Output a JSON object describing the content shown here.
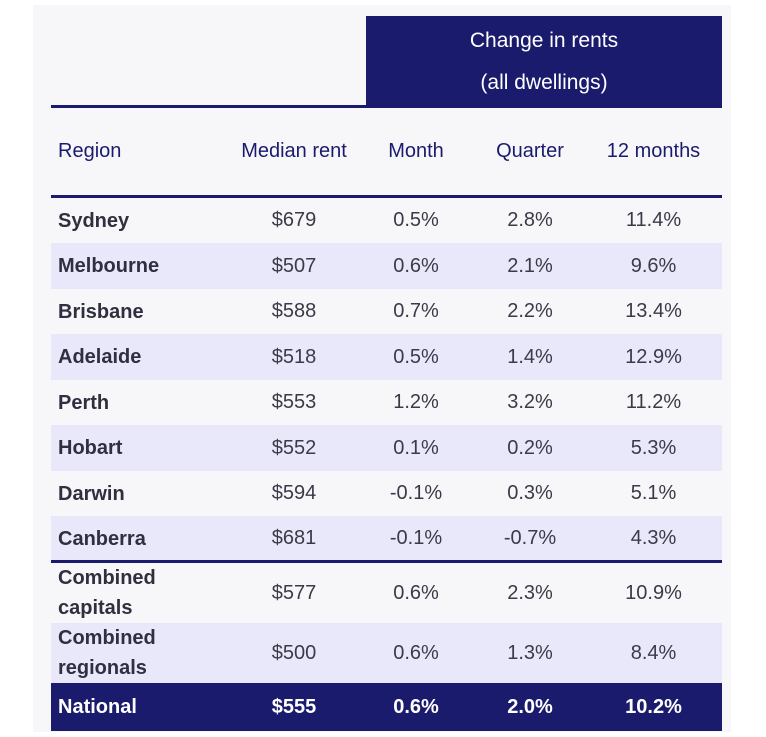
{
  "header": {
    "group_line1": "Change in rents",
    "group_line2": "(all dwellings)",
    "columns": [
      "Region",
      "Median rent",
      "Month",
      "Quarter",
      "12 months"
    ]
  },
  "rows": [
    {
      "region": "Sydney",
      "median": "$679",
      "month": "0.5%",
      "quarter": "2.8%",
      "year": "11.4%"
    },
    {
      "region": "Melbourne",
      "median": "$507",
      "month": "0.6%",
      "quarter": "2.1%",
      "year": "9.6%"
    },
    {
      "region": "Brisbane",
      "median": "$588",
      "month": "0.7%",
      "quarter": "2.2%",
      "year": "13.4%"
    },
    {
      "region": "Adelaide",
      "median": "$518",
      "month": "0.5%",
      "quarter": "1.4%",
      "year": "12.9%"
    },
    {
      "region": "Perth",
      "median": "$553",
      "month": "1.2%",
      "quarter": "3.2%",
      "year": "11.2%"
    },
    {
      "region": "Hobart",
      "median": "$552",
      "month": "0.1%",
      "quarter": "0.2%",
      "year": "5.3%"
    },
    {
      "region": "Darwin",
      "median": "$594",
      "month": "-0.1%",
      "quarter": "0.3%",
      "year": "5.1%"
    },
    {
      "region": "Canberra",
      "median": "$681",
      "month": "-0.1%",
      "quarter": "-0.7%",
      "year": "4.3%"
    }
  ],
  "combined": [
    {
      "region": "Combined capitals",
      "median": "$577",
      "month": "0.6%",
      "quarter": "2.3%",
      "year": "10.9%"
    },
    {
      "region": "Combined regionals",
      "median": "$500",
      "month": "0.6%",
      "quarter": "1.3%",
      "year": "8.4%"
    }
  ],
  "national": {
    "region": "National",
    "median": "$555",
    "month": "0.6%",
    "quarter": "2.0%",
    "year": "10.2%"
  },
  "colors": {
    "navy": "#1b1b6e",
    "band": "#e8e8fa"
  }
}
